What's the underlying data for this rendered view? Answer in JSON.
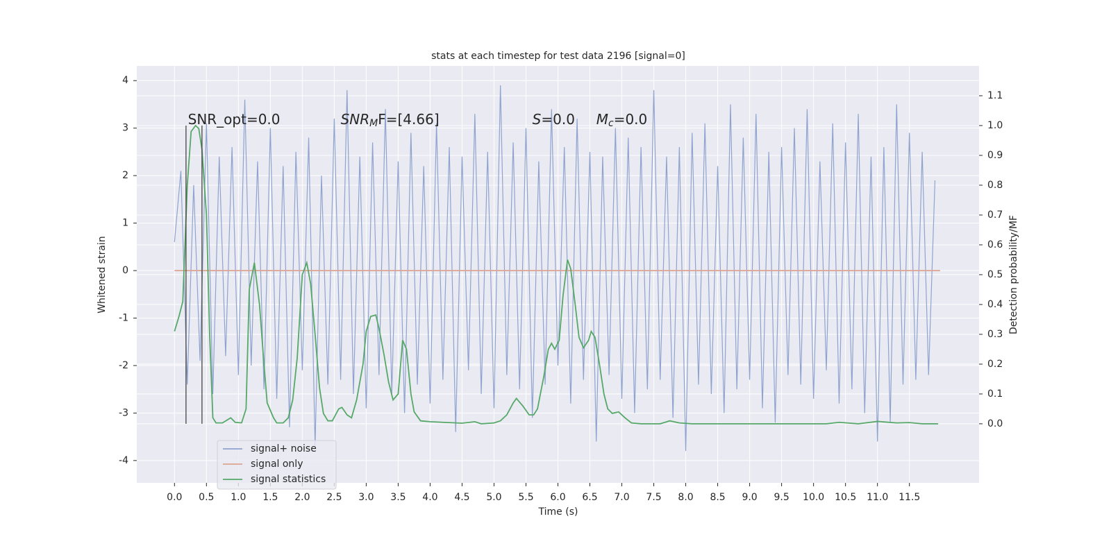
{
  "chart_data": {
    "type": "line",
    "title": "stats at each timestep for test data 2196 [signal=0]",
    "xlabel": "Time (s)",
    "ylabel": "Whitened strain",
    "y2label": "Detection probability/MF",
    "xlim": [
      -0.59,
      12.59
    ],
    "ylim": [
      -4.47,
      4.31
    ],
    "y2lim": [
      -0.198,
      1.2
    ],
    "xticks": [
      {
        "value": 0,
        "label": "0.0"
      },
      0.5,
      {
        "value": 1,
        "label": "1.0"
      },
      1.5,
      {
        "value": 2,
        "label": "2.0"
      },
      2.5,
      {
        "value": 3,
        "label": "3.0"
      },
      3.5,
      {
        "value": 4,
        "label": "4.0"
      },
      4.5,
      {
        "value": 5,
        "label": "5.0"
      },
      5.5,
      {
        "value": 6,
        "label": "6.0"
      },
      6.5,
      {
        "value": 7,
        "label": "7.0"
      },
      7.5,
      {
        "value": 8,
        "label": "8.0"
      },
      8.5,
      {
        "value": 9,
        "label": "9.0"
      },
      9.5,
      {
        "value": 10,
        "label": "10.0"
      },
      10.5,
      {
        "value": 11,
        "label": "11.0"
      },
      11.5
    ],
    "yticks": [
      -4,
      -3,
      -2,
      -1,
      0,
      1,
      2,
      3,
      4
    ],
    "y2ticks": [
      {
        "value": 0,
        "label": "0.0"
      },
      0.1,
      0.2,
      0.3,
      0.4,
      0.5,
      0.6,
      0.7,
      0.8,
      0.9,
      {
        "value": 1,
        "label": "1.0"
      },
      1.1
    ],
    "grid": true,
    "legend": "lower left",
    "series": [
      {
        "name": "signal+ noise",
        "color": "#8fa3cf",
        "x": [
          0,
          0.1,
          0.2,
          0.3,
          0.4,
          0.5,
          0.6,
          0.7,
          0.8,
          0.9,
          1,
          1.1,
          1.2,
          1.3,
          1.4,
          1.5,
          1.6,
          1.7,
          1.8,
          1.9,
          2,
          2.1,
          2.2,
          2.3,
          2.4,
          2.5,
          2.6,
          2.7,
          2.8,
          2.9,
          3,
          3.1,
          3.2,
          3.3,
          3.4,
          3.5,
          3.6,
          3.7,
          3.8,
          3.9,
          4,
          4.1,
          4.2,
          4.3,
          4.4,
          4.5,
          4.6,
          4.7,
          4.8,
          4.9,
          5,
          5.1,
          5.2,
          5.3,
          5.4,
          5.5,
          5.6,
          5.7,
          5.8,
          5.9,
          6,
          6.1,
          6.2,
          6.3,
          6.4,
          6.5,
          6.6,
          6.7,
          6.8,
          6.9,
          7,
          7.1,
          7.2,
          7.3,
          7.4,
          7.5,
          7.6,
          7.7,
          7.8,
          7.9,
          8,
          8.1,
          8.2,
          8.3,
          8.4,
          8.5,
          8.6,
          8.7,
          8.8,
          8.9,
          9,
          9.1,
          9.2,
          9.3,
          9.4,
          9.5,
          9.6,
          9.7,
          9.8,
          9.9,
          10,
          10.1,
          10.2,
          10.3,
          10.4,
          10.5,
          10.6,
          10.7,
          10.8,
          10.9,
          11,
          11.1,
          11.2,
          11.3,
          11.4,
          11.5,
          11.6,
          11.7,
          11.8,
          11.9
        ],
        "values": [
          0.6,
          2.1,
          -2.4,
          1.8,
          -1.9,
          3.1,
          -2.6,
          2.4,
          -1.8,
          2.6,
          -2.2,
          3.6,
          -2.0,
          2.3,
          -2.5,
          3.0,
          -2.7,
          2.2,
          -3.3,
          2.5,
          -2.1,
          2.8,
          -3.7,
          2.0,
          -2.4,
          3.2,
          -2.3,
          3.8,
          -2.6,
          2.4,
          -2.9,
          2.7,
          -2.2,
          3.4,
          -2.6,
          2.3,
          -3.0,
          2.9,
          -2.4,
          2.2,
          -2.8,
          3.1,
          -2.3,
          2.6,
          -3.4,
          2.4,
          -2.1,
          3.3,
          -2.6,
          2.5,
          -2.9,
          3.9,
          -2.2,
          2.7,
          -2.5,
          3.0,
          -3.1,
          2.3,
          -2.4,
          3.4,
          -2.0,
          2.6,
          -2.8,
          3.2,
          -2.3,
          2.5,
          -3.6,
          2.4,
          -2.2,
          3.0,
          -2.7,
          2.8,
          -3.0,
          2.6,
          -2.5,
          3.8,
          -2.3,
          2.4,
          -3.1,
          2.6,
          -3.8,
          2.9,
          -2.4,
          3.1,
          -2.6,
          2.2,
          -3.0,
          3.5,
          -2.5,
          2.8,
          -2.3,
          3.3,
          -2.9,
          2.5,
          -3.2,
          2.6,
          -2.2,
          3.0,
          -2.4,
          3.4,
          -2.7,
          2.3,
          -2.1,
          3.1,
          -2.8,
          2.7,
          -2.5,
          3.3,
          -3.0,
          2.4,
          -3.6,
          2.6,
          -3.2,
          3.5,
          -2.4,
          2.9,
          -2.3,
          2.5,
          -2.2,
          1.9
        ]
      },
      {
        "name": "signal only",
        "color": "#dda48f",
        "x": [
          0,
          11.98
        ],
        "values": [
          0,
          0
        ]
      },
      {
        "name": "signal statistics",
        "color": "#55a868",
        "axis": "y2",
        "x": [
          0,
          0.07,
          0.13,
          0.2,
          0.26,
          0.33,
          0.38,
          0.43,
          0.5,
          0.55,
          0.6,
          0.65,
          0.75,
          0.88,
          0.95,
          1.05,
          1.12,
          1.17,
          1.25,
          1.33,
          1.4,
          1.45,
          1.55,
          1.6,
          1.7,
          1.78,
          1.85,
          1.92,
          2.0,
          2.07,
          2.13,
          2.2,
          2.27,
          2.33,
          2.4,
          2.47,
          2.57,
          2.62,
          2.7,
          2.77,
          2.85,
          2.95,
          3.0,
          3.07,
          3.15,
          3.2,
          3.28,
          3.35,
          3.42,
          3.5,
          3.57,
          3.63,
          3.7,
          3.75,
          3.85,
          4.0,
          4.2,
          4.5,
          4.7,
          4.8,
          5.0,
          5.1,
          5.2,
          5.3,
          5.35,
          5.45,
          5.55,
          5.62,
          5.68,
          5.78,
          5.85,
          5.9,
          5.95,
          6.02,
          6.08,
          6.15,
          6.2,
          6.27,
          6.33,
          6.4,
          6.48,
          6.52,
          6.58,
          6.65,
          6.72,
          6.78,
          6.85,
          6.95,
          7.05,
          7.15,
          7.3,
          7.6,
          7.75,
          7.9,
          8.1,
          9.5,
          10.2,
          10.4,
          10.7,
          11.0,
          11.3,
          11.5,
          11.7,
          11.95
        ],
        "values": [
          0.31,
          0.36,
          0.41,
          0.8,
          0.98,
          1.0,
          0.99,
          0.92,
          0.7,
          0.3,
          0.02,
          0.003,
          0.003,
          0.02,
          0.005,
          0.003,
          0.05,
          0.45,
          0.54,
          0.4,
          0.2,
          0.07,
          0.02,
          0.003,
          0.003,
          0.02,
          0.08,
          0.22,
          0.5,
          0.54,
          0.47,
          0.3,
          0.12,
          0.035,
          0.01,
          0.01,
          0.05,
          0.055,
          0.03,
          0.02,
          0.08,
          0.2,
          0.31,
          0.36,
          0.365,
          0.32,
          0.23,
          0.14,
          0.08,
          0.1,
          0.28,
          0.25,
          0.1,
          0.04,
          0.01,
          0.007,
          0.005,
          0.002,
          0.007,
          0.0,
          0.003,
          0.01,
          0.03,
          0.07,
          0.085,
          0.06,
          0.03,
          0.03,
          0.05,
          0.16,
          0.25,
          0.27,
          0.25,
          0.28,
          0.43,
          0.55,
          0.52,
          0.4,
          0.29,
          0.255,
          0.28,
          0.31,
          0.29,
          0.2,
          0.1,
          0.05,
          0.035,
          0.04,
          0.02,
          0.003,
          0.0,
          0.0,
          0.01,
          0.003,
          0.0,
          0.0,
          0.0,
          0.005,
          0.0,
          0.008,
          0.003,
          0.004,
          0.0,
          0.0
        ]
      }
    ],
    "vlines": {
      "x": [
        0.18,
        0.43
      ],
      "y2": [
        0,
        1
      ],
      "color": "#444444"
    },
    "annotations": [
      {
        "text": "SNR_opt=0.0",
        "x": 0.21,
        "y": 3.17
      },
      {
        "text": "SNR",
        "sub": "M",
        "rest": "F=[4.66]",
        "x": 2.6,
        "y": 3.17
      },
      {
        "text": "S",
        "rest": "=0.0",
        "x": 5.6,
        "y": 3.17
      },
      {
        "text": "M",
        "sub": "c",
        "rest": "=0.0",
        "x": 6.6,
        "y": 3.17
      }
    ]
  }
}
